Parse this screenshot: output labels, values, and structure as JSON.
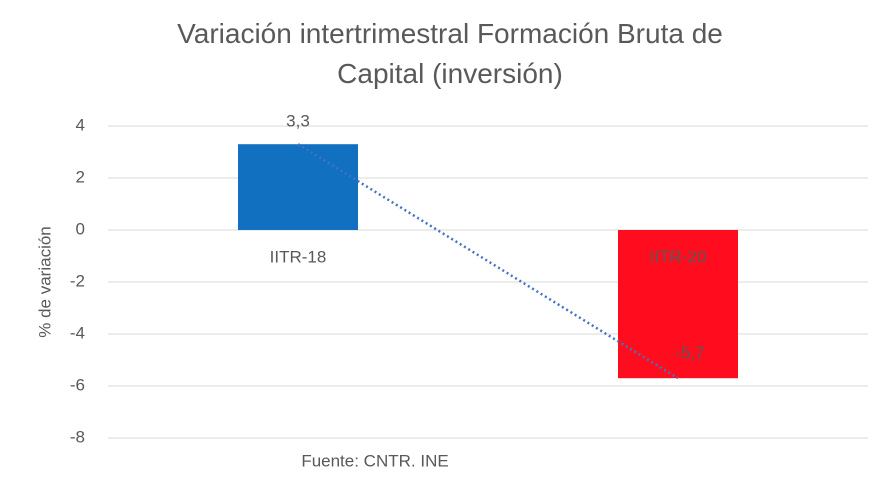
{
  "chart_data": {
    "type": "bar",
    "title": "Variación intertrimestral Formación Bruta de Capital (inversión)",
    "y_label": "% de variación",
    "annotation": "Fuente: CNTR. INE",
    "categories": [
      "IITR-18",
      "IITR-20"
    ],
    "values": [
      3.3,
      -5.7
    ],
    "value_labels": [
      "3,3",
      "-5,7"
    ],
    "colors": [
      "#1170c0",
      "#ff0d1e"
    ],
    "trendline": true,
    "trendline_color": "#4472c4",
    "ylim": [
      -8,
      4
    ],
    "yticks": [
      -8,
      -6,
      -4,
      -2,
      0,
      2,
      4
    ],
    "grid": true
  }
}
